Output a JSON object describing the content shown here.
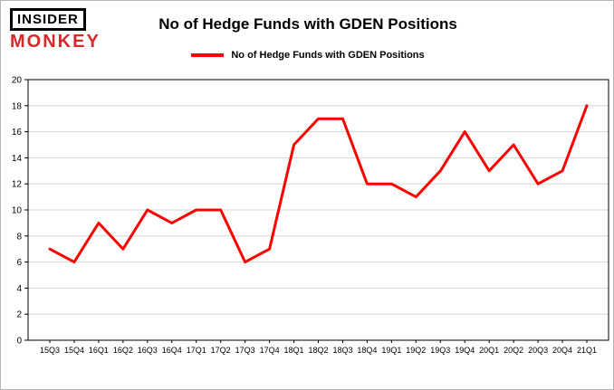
{
  "branding": {
    "line1": "INSIDER",
    "line2": "MONKEY"
  },
  "header": {
    "title": "No of Hedge Funds with GDEN Positions"
  },
  "legend": {
    "label": "No of Hedge Funds with GDEN Positions",
    "color": "#fe0000"
  },
  "chart_data": {
    "type": "line",
    "title": "No of Hedge Funds with GDEN Positions",
    "categories": [
      "15Q3",
      "15Q4",
      "16Q1",
      "16Q2",
      "16Q3",
      "16Q4",
      "17Q1",
      "17Q2",
      "17Q3",
      "17Q4",
      "18Q1",
      "18Q2",
      "18Q3",
      "18Q4",
      "19Q1",
      "19Q2",
      "19Q3",
      "19Q4",
      "20Q1",
      "20Q2",
      "20Q3",
      "20Q4",
      "21Q1"
    ],
    "values": [
      7,
      6,
      9,
      7,
      10,
      9,
      10,
      10,
      6,
      7,
      15,
      17,
      17,
      12,
      12,
      11,
      13,
      16,
      13,
      15,
      12,
      13,
      18
    ],
    "series_name": "No of Hedge Funds with GDEN Positions",
    "xlabel": "",
    "ylabel": "",
    "ylim": [
      0,
      20
    ],
    "ytick_step": 2,
    "grid": true,
    "legend_position": "top",
    "line_color": "#fe0000",
    "grid_color": "#ccdccc",
    "axis_color": "#000000"
  }
}
